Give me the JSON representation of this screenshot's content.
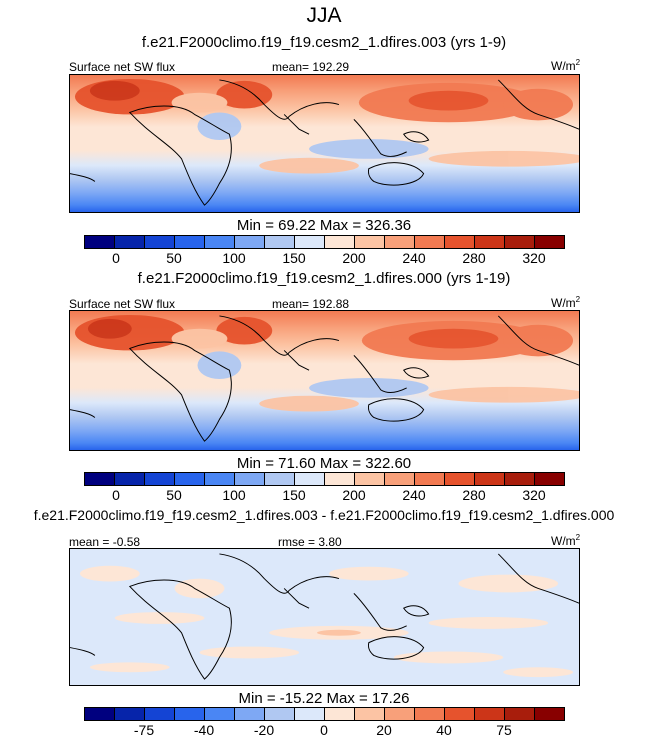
{
  "header": {
    "season": "JJA"
  },
  "panels": [
    {
      "case_title": "f.e21.F2000climo.f19_f19.cesm2_1.dfires.003 (yrs 1-9)",
      "left_label": "Surface net SW flux",
      "center_label": "mean= 192.29",
      "units": "W/m",
      "units_sup": "2",
      "minmax": "Min =  69.22 Max = 326.36",
      "colorbar_ticks": [
        "0",
        "50",
        "100",
        "150",
        "200",
        "240",
        "280",
        "320"
      ]
    },
    {
      "case_title": "f.e21.F2000climo.f19_f19.cesm2_1.dfires.000 (yrs 1-19)",
      "left_label": "Surface net SW flux",
      "center_label": "mean= 192.88",
      "units": "W/m",
      "units_sup": "2",
      "minmax": "Min =  71.60 Max = 322.60",
      "colorbar_ticks": [
        "0",
        "50",
        "100",
        "150",
        "200",
        "240",
        "280",
        "320"
      ]
    },
    {
      "case_title": "f.e21.F2000climo.f19_f19.cesm2_1.dfires.003 - f.e21.F2000climo.f19_f19.cesm2_1.dfires.000",
      "left_label": "mean =  -0.58",
      "center_label": "rmse =  3.80",
      "units": "W/m",
      "units_sup": "2",
      "minmax": "Min = -15.22 Max =  17.26",
      "colorbar_ticks": [
        "-75",
        "-40",
        "-20",
        "0",
        "20",
        "40",
        "75"
      ]
    }
  ],
  "colors": {
    "palette": [
      "#00007f",
      "#0624aa",
      "#1444d4",
      "#2864ec",
      "#4a86f4",
      "#7ea8f4",
      "#b0c8f2",
      "#dce8fa",
      "#fde6d6",
      "#fcc4a4",
      "#f8a07a",
      "#f27a52",
      "#e6532d",
      "#cc3518",
      "#a81d0c",
      "#880000"
    ]
  }
}
